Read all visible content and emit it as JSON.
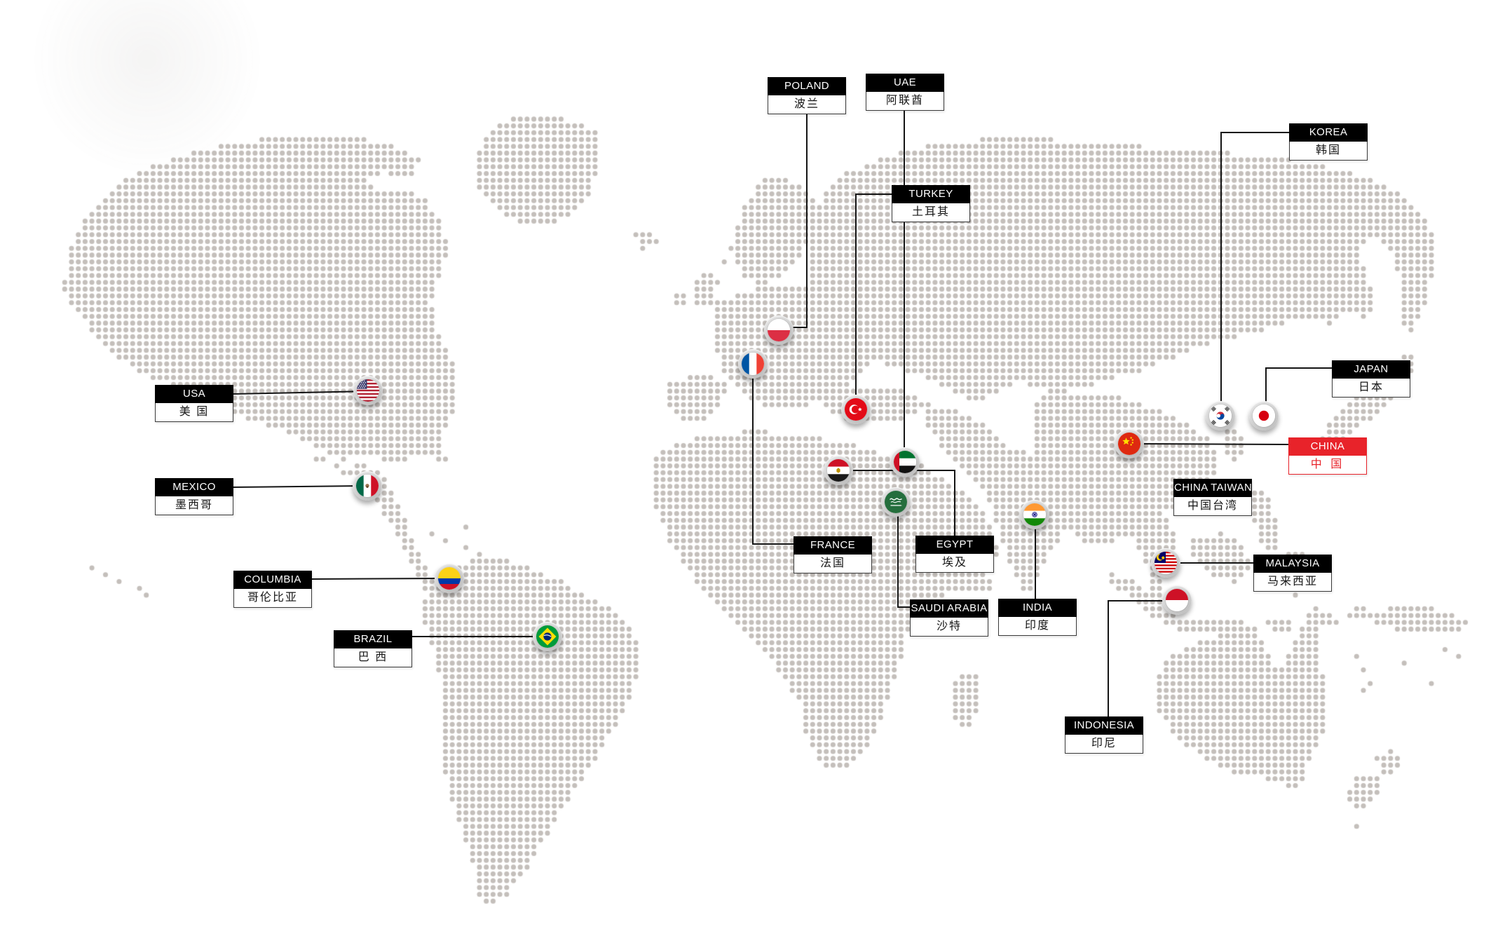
{
  "colors": {
    "highlight_red": "#e8232a",
    "label_header_bg": "#000000",
    "label_header_text": "#ffffff",
    "connector_line": "#141414",
    "map_dot": "#c4bfbb"
  },
  "countries": [
    {
      "id": "usa",
      "en": "USA",
      "zh": "美 国",
      "flag_icon": "usa-flag-icon",
      "highlighted": false,
      "has_pin": true
    },
    {
      "id": "mexico",
      "en": "MEXICO",
      "zh": "墨西哥",
      "flag_icon": "mexico-flag-icon",
      "highlighted": false,
      "has_pin": true
    },
    {
      "id": "columbia",
      "en": "COLUMBIA",
      "zh": "哥伦比亚",
      "flag_icon": "columbia-flag-icon",
      "highlighted": false,
      "has_pin": true
    },
    {
      "id": "brazil",
      "en": "BRAZIL",
      "zh": "巴 西",
      "flag_icon": "brazil-flag-icon",
      "highlighted": false,
      "has_pin": true
    },
    {
      "id": "poland",
      "en": "POLAND",
      "zh": "波兰",
      "flag_icon": "poland-flag-icon",
      "highlighted": false,
      "has_pin": true
    },
    {
      "id": "uae",
      "en": "UAE",
      "zh": "阿联酋",
      "flag_icon": "uae-flag-icon",
      "highlighted": false,
      "has_pin": true
    },
    {
      "id": "turkey",
      "en": "TURKEY",
      "zh": "土耳其",
      "flag_icon": "turkey-flag-icon",
      "highlighted": false,
      "has_pin": true
    },
    {
      "id": "france",
      "en": "FRANCE",
      "zh": "法国",
      "flag_icon": "france-flag-icon",
      "highlighted": false,
      "has_pin": true
    },
    {
      "id": "egypt",
      "en": "EGYPT",
      "zh": "埃及",
      "flag_icon": "egypt-flag-icon",
      "highlighted": false,
      "has_pin": true
    },
    {
      "id": "saudi",
      "en": "SAUDI ARABIA",
      "zh": "沙特",
      "flag_icon": "saudi-flag-icon",
      "highlighted": false,
      "has_pin": true
    },
    {
      "id": "india",
      "en": "INDIA",
      "zh": "印度",
      "flag_icon": "india-flag-icon",
      "highlighted": false,
      "has_pin": true
    },
    {
      "id": "korea",
      "en": "KOREA",
      "zh": "韩国",
      "flag_icon": "korea-flag-icon",
      "highlighted": false,
      "has_pin": true
    },
    {
      "id": "japan",
      "en": "JAPAN",
      "zh": "日本",
      "flag_icon": "japan-flag-icon",
      "highlighted": false,
      "has_pin": true
    },
    {
      "id": "china",
      "en": "CHINA",
      "zh": "中 国",
      "flag_icon": "china-flag-icon",
      "highlighted": true,
      "has_pin": true
    },
    {
      "id": "taiwan",
      "en": "CHINA TAIWAN",
      "zh": "中国台湾",
      "flag_icon": null,
      "highlighted": false,
      "has_pin": false
    },
    {
      "id": "malaysia",
      "en": "MALAYSIA",
      "zh": "马来西亚",
      "flag_icon": "malaysia-flag-icon",
      "highlighted": false,
      "has_pin": true
    },
    {
      "id": "indonesia",
      "en": "INDONESIA",
      "zh": "印尼",
      "flag_icon": "indonesia-flag-icon",
      "highlighted": false,
      "has_pin": true
    }
  ]
}
